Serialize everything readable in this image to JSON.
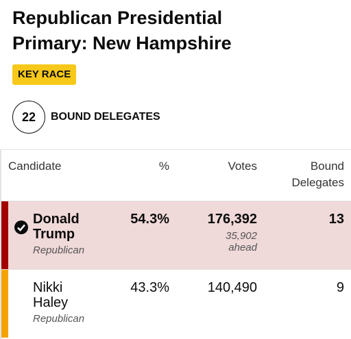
{
  "header": {
    "title": "Republican Presidential Primary: New Hampshire",
    "badge": "KEY RACE",
    "delegates_count": "22",
    "delegates_label": "BOUND DELEGATES"
  },
  "table": {
    "columns": [
      "Candidate",
      "%",
      "Votes",
      "Bound Delegates"
    ],
    "rows": [
      {
        "name": "Donald Trump",
        "party": "Republican",
        "percent": "54.3%",
        "votes": "176,392",
        "lead": "35,902 ahead",
        "delegates": "13",
        "winner": true,
        "color": "#a30000",
        "background": "#f0d9d9"
      },
      {
        "name": "Nikki Haley",
        "party": "Republican",
        "percent": "43.3%",
        "votes": "140,490",
        "delegates": "9",
        "winner": false,
        "color": "#f5a300",
        "background": "#ffffff"
      }
    ]
  }
}
